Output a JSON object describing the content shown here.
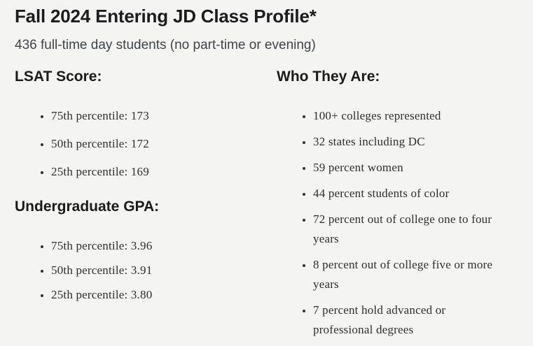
{
  "page": {
    "title": "Fall 2024 Entering JD Class Profile*",
    "subtitle": "436 full-time day students (no part-time or evening)"
  },
  "sections": {
    "lsat": {
      "heading": "LSAT Score:",
      "items": [
        "75th percentile: 173",
        "50th percentile: 172",
        "25th percentile: 169"
      ]
    },
    "gpa": {
      "heading": "Undergraduate GPA:",
      "items": [
        "75th percentile: 3.96",
        "50th percentile: 3.91",
        "25th percentile: 3.80"
      ]
    },
    "who": {
      "heading": "Who They Are:",
      "items": [
        "100+ colleges represented",
        "32 states including DC",
        "59 percent women",
        "44 percent students of color",
        "72 percent out of college one to four\nyears",
        "8 percent out of college five or more\nyears",
        "7 percent hold advanced or\nprofessional degrees"
      ]
    }
  },
  "colors": {
    "background": "#f4f4f2",
    "title_text": "#1c1c1e",
    "subtitle_text": "#3f4449",
    "heading_text": "#1b1b1b",
    "body_text": "#2e2e2e"
  }
}
